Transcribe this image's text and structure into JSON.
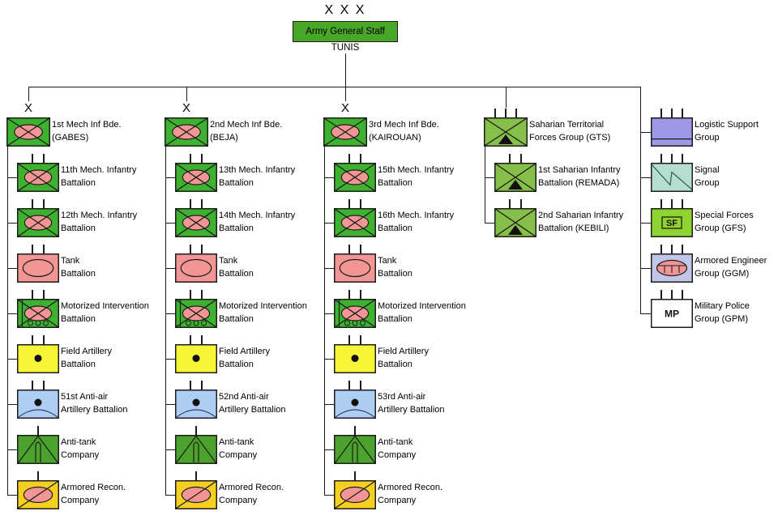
{
  "header": {
    "echelon": "X X X",
    "title": "Army General Staff",
    "location": "TUNIS"
  },
  "symbol_labels": {
    "sf": "SF",
    "mp": "MP"
  },
  "colors": {
    "staff_green": "#48a629",
    "mech_green": "#3eb230",
    "antitank_green": "#4ba32d",
    "saharian_green": "#87bf4b",
    "sf_green": "#8ed32f",
    "pink": "#f29595",
    "yellow": "#f6f637",
    "gold": "#f6d021",
    "antiair_blue": "#aecdf2",
    "lavender": "#9e99e4",
    "teal": "#b5decf",
    "periwinkle": "#bfc6e8",
    "white": "#ffffff",
    "line": "#1c1c1c"
  },
  "columns": [
    {
      "echelon_label": "X",
      "units": [
        {
          "symbol": "mech-infantry",
          "size": "brigade",
          "line1": "1st Mech Inf Bde.",
          "line2": "(GABES)"
        },
        {
          "symbol": "mech-infantry",
          "size": "battalion",
          "line1": "11th Mech. Infantry",
          "line2": "Battalion"
        },
        {
          "symbol": "mech-infantry",
          "size": "battalion",
          "line1": "12th Mech. Infantry",
          "line2": "Battalion"
        },
        {
          "symbol": "tank",
          "size": "battalion",
          "line1": "Tank",
          "line2": "Battalion"
        },
        {
          "symbol": "motorized-intervention",
          "size": "battalion",
          "line1": "Motorized Intervention",
          "line2": "Battalion"
        },
        {
          "symbol": "field-artillery",
          "size": "battalion",
          "line1": "Field Artillery",
          "line2": "Battalion"
        },
        {
          "symbol": "anti-air",
          "size": "battalion",
          "line1": "51st Anti-air",
          "line2": "Artillery Battalion"
        },
        {
          "symbol": "anti-tank",
          "size": "company",
          "line1": "Anti-tank",
          "line2": "Company"
        },
        {
          "symbol": "armored-recon",
          "size": "company",
          "line1": "Armored Recon.",
          "line2": "Company"
        }
      ]
    },
    {
      "echelon_label": "X",
      "units": [
        {
          "symbol": "mech-infantry",
          "size": "brigade",
          "line1": "2nd Mech Inf Bde.",
          "line2": "(BEJA)"
        },
        {
          "symbol": "mech-infantry",
          "size": "battalion",
          "line1": "13th Mech. Infantry",
          "line2": "Battalion"
        },
        {
          "symbol": "mech-infantry",
          "size": "battalion",
          "line1": "14th Mech. Infantry",
          "line2": "Battalion"
        },
        {
          "symbol": "tank",
          "size": "battalion",
          "line1": "Tank",
          "line2": "Battalion"
        },
        {
          "symbol": "motorized-intervention",
          "size": "battalion",
          "line1": "Motorized Intervention",
          "line2": "Battalion"
        },
        {
          "symbol": "field-artillery",
          "size": "battalion",
          "line1": "Field Artillery",
          "line2": "Battalion"
        },
        {
          "symbol": "anti-air",
          "size": "battalion",
          "line1": "52nd Anti-air",
          "line2": "Artillery Battalion"
        },
        {
          "symbol": "anti-tank",
          "size": "company",
          "line1": "Anti-tank",
          "line2": "Company"
        },
        {
          "symbol": "armored-recon",
          "size": "company",
          "line1": "Armored Recon.",
          "line2": "Company"
        }
      ]
    },
    {
      "echelon_label": "X",
      "units": [
        {
          "symbol": "mech-infantry",
          "size": "brigade",
          "line1": "3rd Mech Inf Bde.",
          "line2": "(KAIROUAN)"
        },
        {
          "symbol": "mech-infantry",
          "size": "battalion",
          "line1": "15th Mech. Infantry",
          "line2": "Battalion"
        },
        {
          "symbol": "mech-infantry",
          "size": "battalion",
          "line1": "16th Mech. Infantry",
          "line2": "Battalion"
        },
        {
          "symbol": "tank",
          "size": "battalion",
          "line1": "Tank",
          "line2": "Battalion"
        },
        {
          "symbol": "motorized-intervention",
          "size": "battalion",
          "line1": "Motorized Intervention",
          "line2": "Battalion"
        },
        {
          "symbol": "field-artillery",
          "size": "battalion",
          "line1": "Field Artillery",
          "line2": "Battalion"
        },
        {
          "symbol": "anti-air",
          "size": "battalion",
          "line1": "53rd Anti-air",
          "line2": "Artillery Battalion"
        },
        {
          "symbol": "anti-tank",
          "size": "company",
          "line1": "Anti-tank",
          "line2": "Company"
        },
        {
          "symbol": "armored-recon",
          "size": "company",
          "line1": "Armored Recon.",
          "line2": "Company"
        }
      ]
    },
    {
      "echelon_label": "",
      "units": [
        {
          "symbol": "saharian-infantry",
          "size": "group",
          "line1": "Saharian Territorial",
          "line2": "Forces Group (GTS)"
        },
        {
          "symbol": "saharian-infantry",
          "size": "battalion",
          "line1": "1st Saharian Infantry",
          "line2": "Battalion (REMADA)"
        },
        {
          "symbol": "saharian-infantry",
          "size": "battalion",
          "line1": "2nd Saharian Infantry",
          "line2": "Battalion (KEBILI)"
        }
      ]
    },
    {
      "echelon_label": "",
      "units": [
        {
          "symbol": "logistic",
          "size": "group",
          "line1": "Logistic Support",
          "line2": "Group"
        },
        {
          "symbol": "signal",
          "size": "group",
          "line1": "Signal",
          "line2": "Group"
        },
        {
          "symbol": "special-forces",
          "size": "group",
          "line1": "Special Forces",
          "line2": "Group (GFS)"
        },
        {
          "symbol": "armored-engineer",
          "size": "group",
          "line1": "Armored Engineer",
          "line2": "Group (GGM)"
        },
        {
          "symbol": "military-police",
          "size": "group",
          "line1": "Military Police",
          "line2": "Group (GPM)"
        }
      ]
    }
  ]
}
